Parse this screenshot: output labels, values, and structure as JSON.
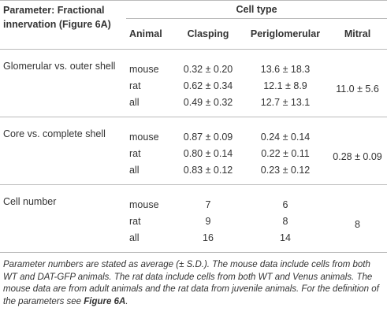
{
  "header": {
    "parameter": "Parameter: Fractional innervation (Figure 6A)",
    "cell_type": "Cell type",
    "columns": [
      "Animal",
      "Clasping",
      "Periglomerular",
      "Mitral"
    ]
  },
  "groups": [
    {
      "label": "Glomerular vs. outer shell",
      "rows": [
        {
          "animal": "mouse",
          "clasping": "0.32 ± 0.20",
          "periglomerular": "13.6 ± 18.3"
        },
        {
          "animal": "rat",
          "clasping": "0.62 ± 0.34",
          "periglomerular": "12.1 ± 8.9"
        },
        {
          "animal": "all",
          "clasping": "0.49 ± 0.32",
          "periglomerular": "12.7 ± 13.1"
        }
      ],
      "mitral": "11.0 ± 5.6"
    },
    {
      "label": "Core vs. complete shell",
      "rows": [
        {
          "animal": "mouse",
          "clasping": "0.87 ± 0.09",
          "periglomerular": "0.24 ± 0.14"
        },
        {
          "animal": "rat",
          "clasping": "0.80 ± 0.14",
          "periglomerular": "0.22 ± 0.11"
        },
        {
          "animal": "all",
          "clasping": "0.83 ± 0.12",
          "periglomerular": "0.23 ± 0.12"
        }
      ],
      "mitral": "0.28 ± 0.09"
    },
    {
      "label": "Cell number",
      "rows": [
        {
          "animal": "mouse",
          "clasping": 7,
          "periglomerular": 6
        },
        {
          "animal": "rat",
          "clasping": 9,
          "periglomerular": 8
        },
        {
          "animal": "all",
          "clasping": 16,
          "periglomerular": 14
        }
      ],
      "mitral": 8
    }
  ],
  "footnote": {
    "text": "Parameter numbers are stated as average (± S.D.). The mouse data include cells from both WT and DAT-GFP animals. The rat data include cells from both WT and Venus animals. The mouse data are from adult animals and the rat data from juvenile animals. For the definition of the parameters see ",
    "bold": "Figure 6A",
    "end": "."
  }
}
